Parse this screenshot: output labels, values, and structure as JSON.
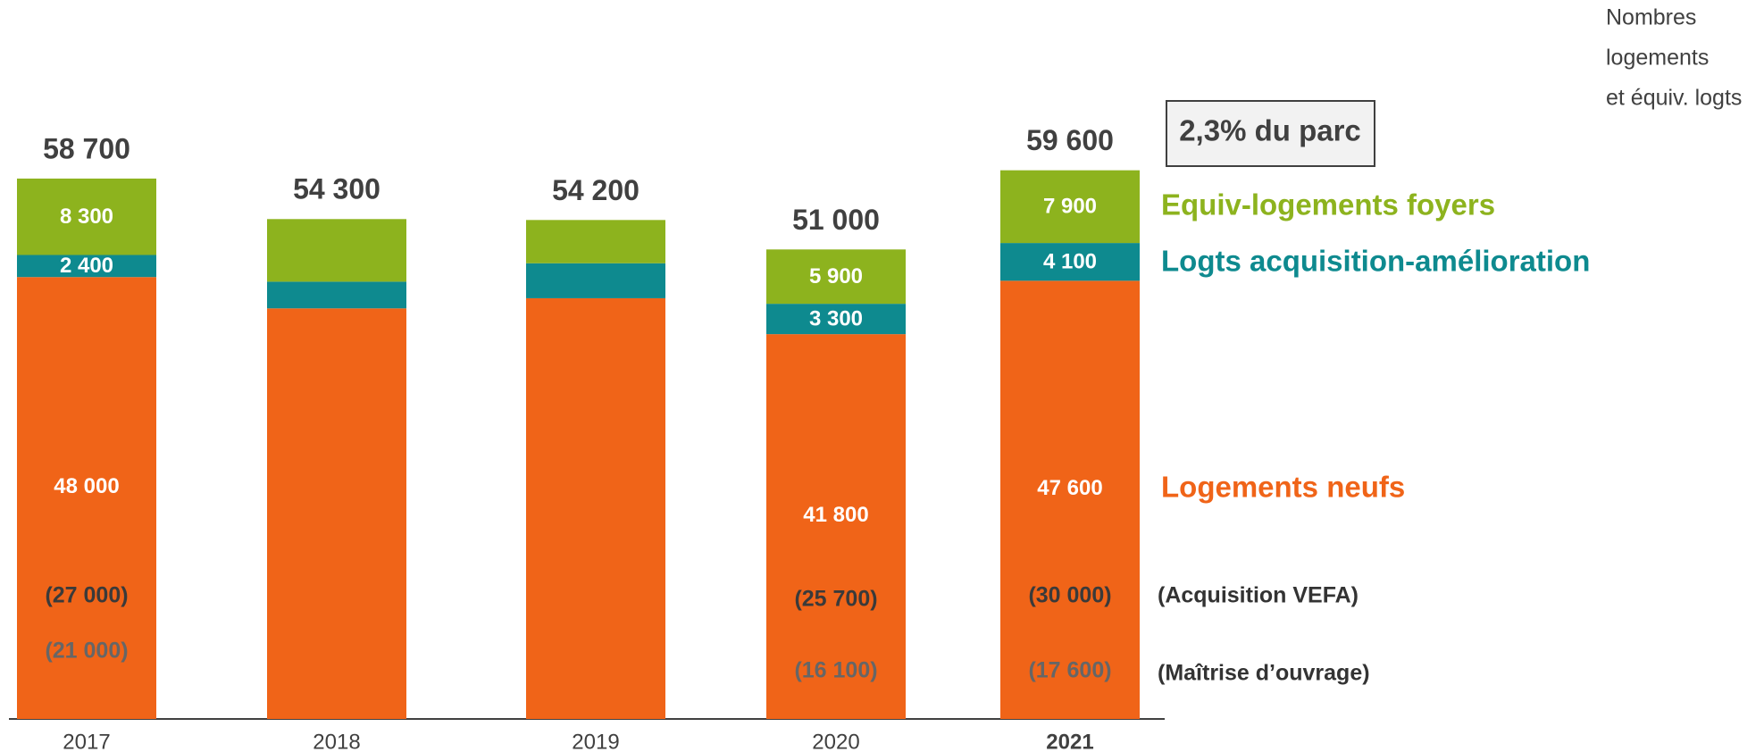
{
  "chart_data": {
    "type": "stacked_bar",
    "categories": [
      "2017",
      "2018",
      "2019",
      "2020",
      "2021"
    ],
    "bold_category": 4,
    "ylim": [
      0,
      78000
    ],
    "series": [
      {
        "name": "Logements neufs",
        "color": "#f06418",
        "values": [
          48000,
          44600,
          45700,
          41800,
          47600
        ],
        "value_labels": [
          "48 000",
          null,
          null,
          "41 800",
          "47 600"
        ]
      },
      {
        "name": "Logts acquisition-amélioration",
        "color": "#0e8a8f",
        "values": [
          2400,
          2900,
          3800,
          3300,
          4100
        ],
        "value_labels": [
          "2 400",
          null,
          null,
          "3 300",
          "4 100"
        ]
      },
      {
        "name": "Equiv-logements foyers",
        "color": "#8db31e",
        "values": [
          8300,
          6800,
          4700,
          5900,
          7900
        ],
        "value_labels": [
          "8 300",
          null,
          null,
          "5 900",
          "7 900"
        ]
      }
    ],
    "totals": {
      "values": [
        58700,
        54300,
        54200,
        51000,
        59600
      ],
      "value_labels": [
        "58 700",
        "54 300",
        "54 200",
        "51 000",
        "59 600"
      ]
    },
    "breakdowns": [
      {
        "name": "(Acquisition VEFA)",
        "labels": [
          "(27 000)",
          null,
          null,
          "(25 700)",
          "(30 000)"
        ]
      },
      {
        "name": "(Maîtrise d’ouvrage)",
        "labels": [
          "(21 000)",
          null,
          null,
          "(16 100)",
          "(17 600)"
        ]
      }
    ],
    "annotation": "2,3% du parc",
    "unit_label": [
      "Nombres",
      "logements",
      "et équiv. logts"
    ]
  }
}
